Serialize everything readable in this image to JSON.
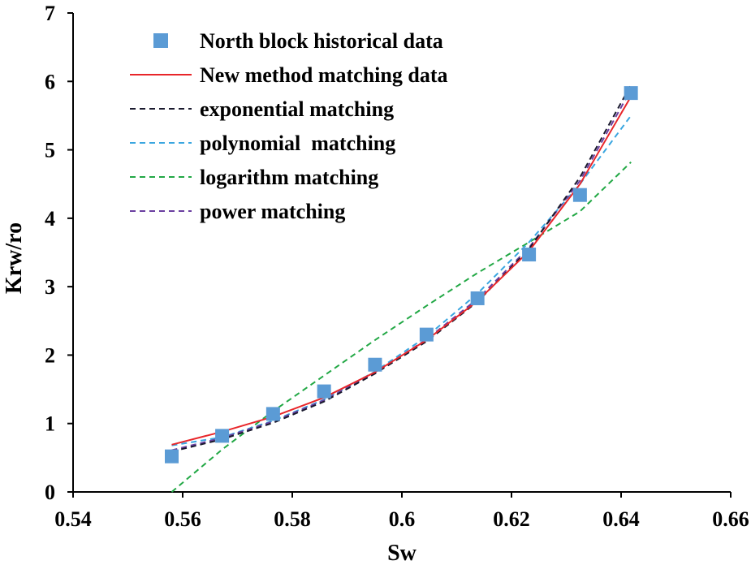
{
  "chart_data": {
    "type": "scatter",
    "title": "",
    "xlabel": "Sw",
    "ylabel": "Krw/ro",
    "xlim": [
      0.54,
      0.66
    ],
    "ylim": [
      0,
      7
    ],
    "xticks": [
      0.54,
      0.56,
      0.58,
      0.6,
      0.62,
      0.64,
      0.66
    ],
    "xtick_labels": [
      "0.54",
      "0.56",
      "0.58",
      "0.6",
      "0.62",
      "0.64",
      "0.66"
    ],
    "yticks": [
      0,
      1,
      2,
      3,
      4,
      5,
      6,
      7
    ],
    "ytick_labels": [
      "0",
      "1",
      "2",
      "3",
      "4",
      "5",
      "6",
      "7"
    ],
    "grid": false,
    "legend_position": "top-left",
    "series": [
      {
        "name": "North block historical data",
        "kind": "markers",
        "color": "#5b9bd5",
        "x": [
          0.558,
          0.5672,
          0.5765,
          0.5858,
          0.5951,
          0.6045,
          0.6138,
          0.6232,
          0.6325,
          0.6418
        ],
        "y": [
          0.52,
          0.82,
          1.14,
          1.47,
          1.86,
          2.3,
          2.83,
          3.47,
          4.34,
          5.83
        ]
      },
      {
        "name": "New method matching data",
        "kind": "solid",
        "color": "#e8262a",
        "x": [
          0.558,
          0.5672,
          0.5765,
          0.5858,
          0.5951,
          0.6045,
          0.6138,
          0.6232,
          0.6325,
          0.6418
        ],
        "y": [
          0.69,
          0.88,
          1.1,
          1.38,
          1.75,
          2.22,
          2.79,
          3.52,
          4.5,
          5.78
        ]
      },
      {
        "name": "exponential matching",
        "kind": "dashed",
        "color": "#1a1a2e",
        "x": [
          0.558,
          0.5672,
          0.5765,
          0.5858,
          0.5951,
          0.6045,
          0.6138,
          0.6232,
          0.6325,
          0.6418
        ],
        "y": [
          0.59,
          0.77,
          1.01,
          1.32,
          1.73,
          2.2,
          2.78,
          3.55,
          4.6,
          5.95
        ]
      },
      {
        "name": "polynomial  matching",
        "kind": "dashed",
        "color": "#3aa6e0",
        "x": [
          0.558,
          0.5672,
          0.5765,
          0.5858,
          0.5951,
          0.6045,
          0.6138,
          0.6232,
          0.6325,
          0.6418
        ],
        "y": [
          0.68,
          0.8,
          1.04,
          1.35,
          1.76,
          2.27,
          2.9,
          3.65,
          4.5,
          5.5
        ]
      },
      {
        "name": "logarithm matching",
        "kind": "dashed",
        "color": "#22a845",
        "x": [
          0.558,
          0.5672,
          0.5765,
          0.5858,
          0.5951,
          0.6045,
          0.6138,
          0.6232,
          0.6325,
          0.6418
        ],
        "y": [
          0.0,
          0.62,
          1.18,
          1.7,
          2.22,
          2.72,
          3.2,
          3.65,
          4.1,
          4.82
        ]
      },
      {
        "name": "power matching",
        "kind": "dashed",
        "color": "#6a3fa0",
        "x": [
          0.558,
          0.5672,
          0.5765,
          0.5858,
          0.5951,
          0.6045,
          0.6138,
          0.6232,
          0.6325,
          0.6418
        ],
        "y": [
          0.61,
          0.79,
          1.03,
          1.34,
          1.74,
          2.23,
          2.82,
          3.57,
          4.55,
          5.88
        ]
      }
    ]
  }
}
